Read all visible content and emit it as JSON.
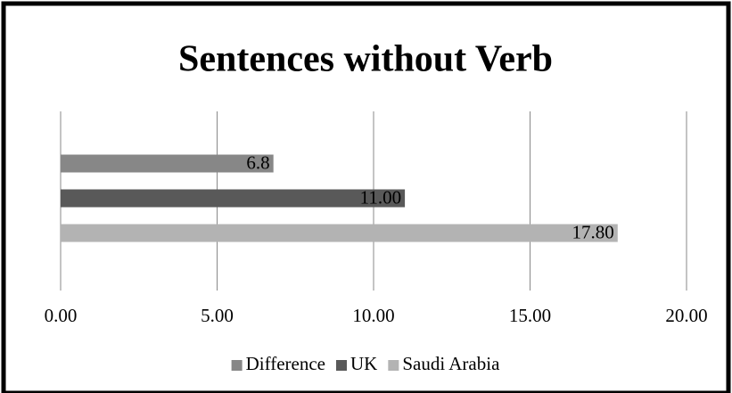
{
  "chart_data": {
    "type": "bar",
    "orientation": "horizontal",
    "title": "Sentences without Verb",
    "categories": [
      null
    ],
    "series": [
      {
        "name": "Difference",
        "color": "#878787",
        "values": [
          6.8
        ],
        "value_labels": [
          "6.8"
        ]
      },
      {
        "name": "UK",
        "color": "#595959",
        "values": [
          11
        ],
        "value_labels": [
          "11.00"
        ]
      },
      {
        "name": "Saudi Arabia",
        "color": "#b3b3b3",
        "values": [
          17.8
        ],
        "value_labels": [
          "17.80"
        ]
      }
    ],
    "xlim": [
      0,
      20
    ],
    "xticks": [
      {
        "value": 0,
        "label": "0.00"
      },
      {
        "value": 5,
        "label": "5.00"
      },
      {
        "value": 10,
        "label": "10.00"
      },
      {
        "value": 15,
        "label": "15.00"
      },
      {
        "value": 20,
        "label": "20.00"
      }
    ],
    "grid": true,
    "legend": "bottom"
  }
}
